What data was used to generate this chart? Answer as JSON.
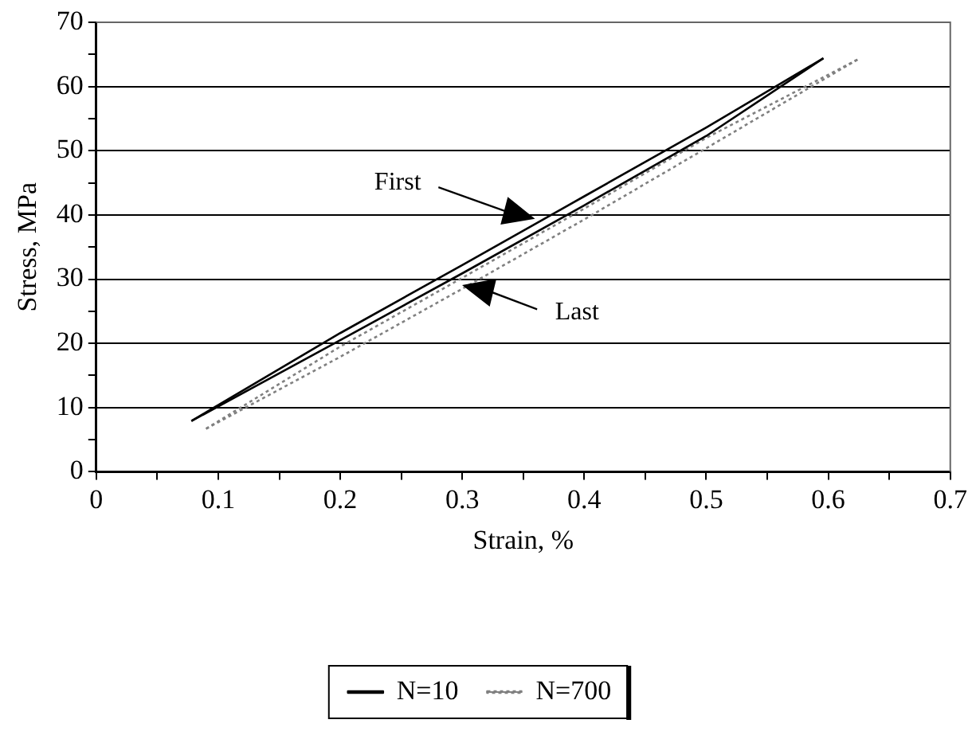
{
  "chart_data": {
    "type": "line",
    "xlabel": "Strain, %",
    "ylabel": "Stress, MPa",
    "xlim": [
      0,
      0.7
    ],
    "xticks": [
      0,
      {
        "value": 0.05,
        "label": null
      },
      0.1,
      {
        "value": 0.15,
        "label": null
      },
      0.2,
      {
        "value": 0.25,
        "label": null
      },
      0.3,
      {
        "value": 0.35,
        "label": null
      },
      0.4,
      {
        "value": 0.45,
        "label": null
      },
      0.5,
      {
        "value": 0.55,
        "label": null
      },
      0.6,
      {
        "value": 0.65,
        "label": null
      },
      0.7
    ],
    "ylim": [
      0,
      70
    ],
    "yticks": [
      0,
      {
        "value": 5,
        "label": null
      },
      10,
      {
        "value": 15,
        "label": null
      },
      20,
      {
        "value": 25,
        "label": null
      },
      30,
      {
        "value": 35,
        "label": null
      },
      40,
      {
        "value": 45,
        "label": null
      },
      50,
      {
        "value": 55,
        "label": null
      },
      60,
      {
        "value": 65,
        "label": null
      },
      70
    ],
    "grid": "y",
    "legend": "bottom",
    "marker": "none",
    "series": [
      {
        "name": "N=10",
        "color": "#000000",
        "line_style": "solid",
        "x": [
          0.078,
          0.2,
          0.3,
          0.4,
          0.5,
          0.596
        ],
        "values": [
          7.9,
          20.5,
          30.9,
          41.5,
          52.3,
          64.4
        ]
      },
      {
        "color": "#000000",
        "line_style": "solid",
        "x": [
          0.078,
          0.1,
          0.2,
          0.3,
          0.4,
          0.5,
          0.596
        ],
        "values": [
          7.9,
          10.4,
          21.6,
          32.2,
          42.9,
          53.6,
          64.4
        ]
      },
      {
        "name": "N=700",
        "color": "#808080",
        "line_style": "dotted",
        "x": [
          0.09,
          0.2,
          0.3,
          0.4,
          0.5,
          0.624
        ],
        "values": [
          6.7,
          17.9,
          28.5,
          39.3,
          50.4,
          64.2
        ]
      },
      {
        "color": "#808080",
        "line_style": "dotted",
        "x": [
          0.09,
          0.2,
          0.3,
          0.4,
          0.5,
          0.624
        ],
        "values": [
          6.7,
          19.5,
          30.2,
          41,
          52,
          64.2
        ]
      }
    ],
    "annotations": [
      "First",
      "Last"
    ]
  }
}
